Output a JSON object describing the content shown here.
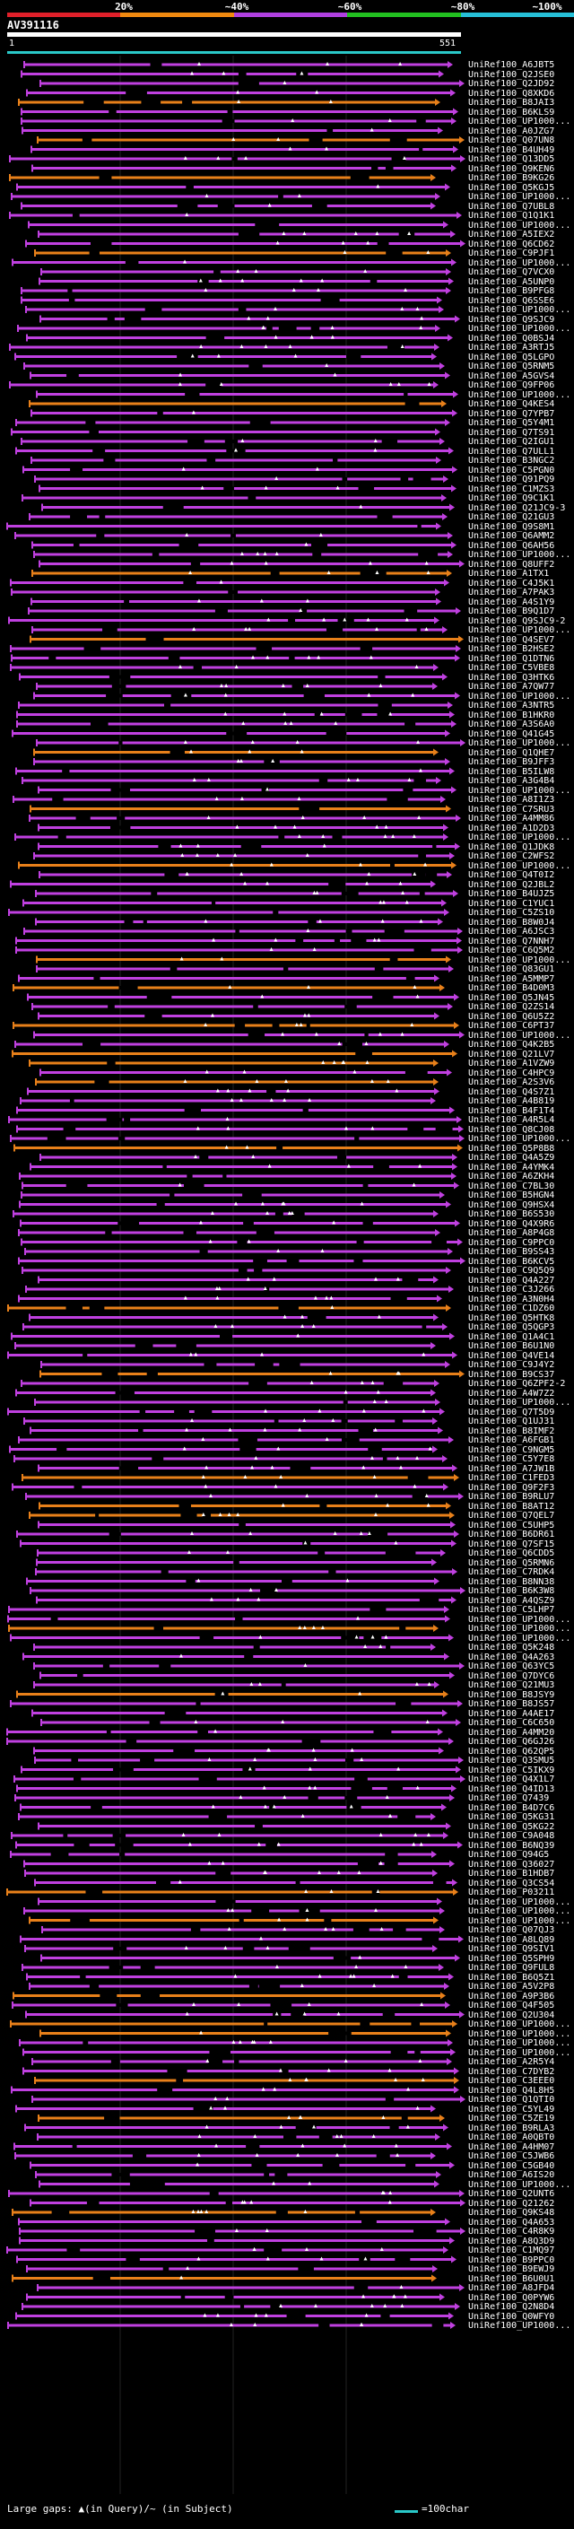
{
  "scale": {
    "labels": [
      "20%",
      "~40%",
      "~60%",
      "~80%",
      "~100%"
    ],
    "colors": [
      "#e0202a",
      "#f08a10",
      "#b040e0",
      "#22c020",
      "#26c0d8"
    ]
  },
  "query": {
    "name": "AV391116",
    "start": "1",
    "end": "551"
  },
  "colors": {
    "magenta": "#c040e0",
    "orange": "#e8801a",
    "cyan": "#2ac8c8",
    "white": "#ffffff",
    "background": "#000000"
  },
  "hits": [
    {
      "label": "UniRef100_A6JBT5",
      "color": "magenta"
    },
    {
      "label": "UniRef100_Q2JSE0",
      "color": "magenta"
    },
    {
      "label": "UniRef100_Q2JD92",
      "color": "magenta"
    },
    {
      "label": "UniRef100_Q8XKD6",
      "color": "magenta"
    },
    {
      "label": "UniRef100_B8JAI3",
      "color": "orange"
    },
    {
      "label": "UniRef100_B6KLS9",
      "color": "magenta"
    },
    {
      "label": "UniRef100_UP1000...",
      "color": "magenta"
    },
    {
      "label": "UniRef100_A0JZG7",
      "color": "magenta"
    },
    {
      "label": "UniRef100_Q07UN8",
      "color": "orange"
    },
    {
      "label": "UniRef100_B4UH49",
      "color": "magenta"
    },
    {
      "label": "UniRef100_Q13DD5",
      "color": "magenta"
    },
    {
      "label": "UniRef100_Q9KEN6",
      "color": "magenta"
    },
    {
      "label": "UniRef100_B9KG26",
      "color": "orange"
    },
    {
      "label": "UniRef100_Q5KGJ5",
      "color": "magenta"
    },
    {
      "label": "UniRef100_UP1000...",
      "color": "magenta"
    },
    {
      "label": "UniRef100_Q7UBL8",
      "color": "magenta"
    },
    {
      "label": "UniRef100_Q1Q1K1",
      "color": "magenta"
    },
    {
      "label": "UniRef100_UP1000...",
      "color": "magenta"
    },
    {
      "label": "UniRef100_A5IEX2",
      "color": "magenta"
    },
    {
      "label": "UniRef100_Q6CD62",
      "color": "magenta"
    },
    {
      "label": "UniRef100_C9PJF1",
      "color": "orange"
    },
    {
      "label": "UniRef100_UP1000...",
      "color": "magenta"
    },
    {
      "label": "UniRef100_Q7VCX0",
      "color": "magenta"
    },
    {
      "label": "UniRef100_A5UNP0",
      "color": "magenta"
    },
    {
      "label": "UniRef100_B9PFG8",
      "color": "magenta"
    },
    {
      "label": "UniRef100_Q6SSE6",
      "color": "magenta"
    },
    {
      "label": "UniRef100_UP1000...",
      "color": "magenta"
    },
    {
      "label": "UniRef100_Q9SJC9",
      "color": "magenta"
    },
    {
      "label": "UniRef100_UP1000...",
      "color": "magenta"
    },
    {
      "label": "UniRef100_Q0BSJ4",
      "color": "magenta"
    },
    {
      "label": "UniRef100_A3RTJ5",
      "color": "magenta"
    },
    {
      "label": "UniRef100_Q5LGPO",
      "color": "magenta"
    },
    {
      "label": "UniRef100_Q5RNM5",
      "color": "magenta"
    },
    {
      "label": "UniRef100_A5GVS4",
      "color": "magenta"
    },
    {
      "label": "UniRef100_Q9FP06",
      "color": "magenta"
    },
    {
      "label": "UniRef100_UP1000...",
      "color": "magenta"
    },
    {
      "label": "UniRef100_Q4KES4",
      "color": "orange"
    },
    {
      "label": "UniRef100_Q7YPB7",
      "color": "magenta"
    },
    {
      "label": "UniRef100_Q5Y4M1",
      "color": "magenta"
    },
    {
      "label": "UniRef100_Q7TS91",
      "color": "magenta"
    },
    {
      "label": "UniRef100_Q2IGU1",
      "color": "magenta"
    },
    {
      "label": "UniRef100_Q7ULL1",
      "color": "magenta"
    },
    {
      "label": "UniRef100_B3NGC2",
      "color": "magenta"
    },
    {
      "label": "UniRef100_C5PGN0",
      "color": "magenta"
    },
    {
      "label": "UniRef100_Q91PQ9",
      "color": "magenta"
    },
    {
      "label": "UniRef100_C1MZS3",
      "color": "magenta"
    },
    {
      "label": "UniRef100_Q9C1K1",
      "color": "magenta"
    },
    {
      "label": "UniRef100_Q21JC9-3",
      "color": "magenta"
    },
    {
      "label": "UniRef100_Q21GU3",
      "color": "magenta"
    },
    {
      "label": "UniRef100_Q9S8M1",
      "color": "magenta"
    },
    {
      "label": "UniRef100_Q6AMM2",
      "color": "magenta"
    },
    {
      "label": "UniRef100_Q6AH56",
      "color": "magenta"
    },
    {
      "label": "UniRef100_UP1000...",
      "color": "magenta"
    },
    {
      "label": "UniRef100_Q8UFF2",
      "color": "magenta"
    },
    {
      "label": "UniRef100_A1TX1",
      "color": "orange"
    },
    {
      "label": "UniRef100_C4J5K1",
      "color": "magenta"
    },
    {
      "label": "UniRef100_A7PAK3",
      "color": "magenta"
    },
    {
      "label": "UniRef100_A4S1Y9",
      "color": "magenta"
    },
    {
      "label": "UniRef100_B9Q1D7",
      "color": "magenta"
    },
    {
      "label": "UniRef100_Q9SJC9-2",
      "color": "magenta"
    },
    {
      "label": "UniRef100_UP1000...",
      "color": "magenta"
    },
    {
      "label": "UniRef100_Q4SEV7",
      "color": "orange"
    },
    {
      "label": "UniRef100_B2HSE2",
      "color": "magenta"
    },
    {
      "label": "UniRef100_Q1DTN6",
      "color": "magenta"
    },
    {
      "label": "UniRef100_C5VBE8",
      "color": "magenta"
    },
    {
      "label": "UniRef100_Q3HTK6",
      "color": "magenta"
    },
    {
      "label": "UniRef100_A7QW77",
      "color": "magenta"
    },
    {
      "label": "UniRef100_UP1000...",
      "color": "magenta"
    },
    {
      "label": "UniRef100_A3NTR5",
      "color": "magenta"
    },
    {
      "label": "UniRef100_B1HKR0",
      "color": "magenta"
    },
    {
      "label": "UniRef100_A3S6A0",
      "color": "magenta"
    },
    {
      "label": "UniRef100_Q41G45",
      "color": "magenta"
    },
    {
      "label": "UniRef100_UP1000...",
      "color": "magenta"
    },
    {
      "label": "UniRef100_Q1QHE7",
      "color": "orange"
    },
    {
      "label": "UniRef100_B9JFF3",
      "color": "magenta"
    },
    {
      "label": "UniRef100_B5ILW8",
      "color": "magenta"
    },
    {
      "label": "UniRef100_A3G4B4",
      "color": "magenta"
    },
    {
      "label": "UniRef100_UP1000...",
      "color": "magenta"
    },
    {
      "label": "UniRef100_A8I1Z3",
      "color": "magenta"
    },
    {
      "label": "UniRef100_C7SRU3",
      "color": "orange"
    },
    {
      "label": "UniRef100_A4MM86",
      "color": "magenta"
    },
    {
      "label": "UniRef100_A1D2D3",
      "color": "magenta"
    },
    {
      "label": "UniRef100_UP1000...",
      "color": "magenta"
    },
    {
      "label": "UniRef100_Q1JDK8",
      "color": "magenta"
    },
    {
      "label": "UniRef100_C2WFS2",
      "color": "magenta"
    },
    {
      "label": "UniRef100_UP1000...",
      "color": "orange"
    },
    {
      "label": "UniRef100_Q4T0I2",
      "color": "magenta"
    },
    {
      "label": "UniRef100_Q2JBL2",
      "color": "magenta"
    },
    {
      "label": "UniRef100_B4UJZ5",
      "color": "magenta"
    },
    {
      "label": "UniRef100_C1YUC1",
      "color": "magenta"
    },
    {
      "label": "UniRef100_C5ZS10",
      "color": "magenta"
    },
    {
      "label": "UniRef100_B8W0J4",
      "color": "magenta"
    },
    {
      "label": "UniRef100_A6JSC3",
      "color": "magenta"
    },
    {
      "label": "UniRef100_Q7NNH7",
      "color": "magenta"
    },
    {
      "label": "UniRef100_C6Q5M2",
      "color": "magenta"
    },
    {
      "label": "UniRef100_UP1000...",
      "color": "orange"
    },
    {
      "label": "UniRef100_Q83GU1",
      "color": "magenta"
    },
    {
      "label": "UniRef100_A5MMP7",
      "color": "magenta"
    },
    {
      "label": "UniRef100_B4D0M3",
      "color": "orange"
    },
    {
      "label": "UniRef100_Q5JN45",
      "color": "magenta"
    },
    {
      "label": "UniRef100_Q2ZS14",
      "color": "magenta"
    },
    {
      "label": "UniRef100_Q6U5Z2",
      "color": "magenta"
    },
    {
      "label": "UniRef100_C6PT37",
      "color": "orange"
    },
    {
      "label": "UniRef100_UP1000...",
      "color": "magenta"
    },
    {
      "label": "UniRef100_Q4K2B5",
      "color": "magenta"
    },
    {
      "label": "UniRef100_Q21LV7",
      "color": "orange"
    },
    {
      "label": "UniRef100_A1VZW9",
      "color": "orange"
    },
    {
      "label": "UniRef100_C4HPC9",
      "color": "magenta"
    },
    {
      "label": "UniRef100_A2S3V6",
      "color": "orange"
    },
    {
      "label": "UniRef100_Q4S7Z1",
      "color": "magenta"
    },
    {
      "label": "UniRef100_A4B819",
      "color": "magenta"
    },
    {
      "label": "UniRef100_B4F1T4",
      "color": "magenta"
    },
    {
      "label": "UniRef100_A4R5L4",
      "color": "magenta"
    },
    {
      "label": "UniRef100_Q8CJ08",
      "color": "magenta"
    },
    {
      "label": "UniRef100_UP1000...",
      "color": "magenta"
    },
    {
      "label": "UniRef100_Q5P8B8",
      "color": "orange"
    },
    {
      "label": "UniRef100_Q4A5Z9",
      "color": "magenta"
    },
    {
      "label": "UniRef100_A4YMK4",
      "color": "magenta"
    },
    {
      "label": "UniRef100_A6ZKH4",
      "color": "magenta"
    },
    {
      "label": "UniRef100_C7BL30",
      "color": "magenta"
    },
    {
      "label": "UniRef100_B5HGN4",
      "color": "magenta"
    },
    {
      "label": "UniRef100_Q9HSX4",
      "color": "magenta"
    },
    {
      "label": "UniRef100_B6S530",
      "color": "magenta"
    },
    {
      "label": "UniRef100_Q4X9R6",
      "color": "magenta"
    },
    {
      "label": "UniRef100_A8P4G8",
      "color": "magenta"
    },
    {
      "label": "UniRef100_C9PPC0",
      "color": "magenta"
    },
    {
      "label": "UniRef100_B9SS43",
      "color": "magenta"
    },
    {
      "label": "UniRef100_B6KCV5",
      "color": "magenta"
    },
    {
      "label": "UniRef100_C9Q5Q9",
      "color": "magenta"
    },
    {
      "label": "UniRef100_Q4A227",
      "color": "magenta"
    },
    {
      "label": "UniRef100_C3J266",
      "color": "magenta"
    },
    {
      "label": "UniRef100_A3N0H4",
      "color": "magenta"
    },
    {
      "label": "UniRef100_C1DZ60",
      "color": "orange"
    },
    {
      "label": "UniRef100_Q5HTK8",
      "color": "magenta"
    },
    {
      "label": "UniRef100_Q5QGP3",
      "color": "magenta"
    },
    {
      "label": "UniRef100_Q1A4C1",
      "color": "magenta"
    },
    {
      "label": "UniRef100_B6U1N0",
      "color": "magenta"
    },
    {
      "label": "UniRef100_Q4VE14",
      "color": "magenta"
    },
    {
      "label": "UniRef100_C9J4Y2",
      "color": "magenta"
    },
    {
      "label": "UniRef100_B9CS37",
      "color": "orange"
    },
    {
      "label": "UniRef100_Q6ZPF2-2",
      "color": "magenta"
    },
    {
      "label": "UniRef100_A4W7Z2",
      "color": "magenta"
    },
    {
      "label": "UniRef100_UP1000...",
      "color": "magenta"
    },
    {
      "label": "UniRef100_Q7T5D9",
      "color": "magenta"
    },
    {
      "label": "UniRef100_Q1UJ31",
      "color": "magenta"
    },
    {
      "label": "UniRef100_B8IMF2",
      "color": "magenta"
    },
    {
      "label": "UniRef100_A6FGB1",
      "color": "magenta"
    },
    {
      "label": "UniRef100_C9NGM5",
      "color": "magenta"
    },
    {
      "label": "UniRef100_C5Y7E8",
      "color": "magenta"
    },
    {
      "label": "UniRef100_A7JW1B",
      "color": "magenta"
    },
    {
      "label": "UniRef100_C1FED3",
      "color": "orange"
    },
    {
      "label": "UniRef100_Q9F2F3",
      "color": "magenta"
    },
    {
      "label": "UniRef100_B9RLU7",
      "color": "magenta"
    },
    {
      "label": "UniRef100_B8AT12",
      "color": "orange"
    },
    {
      "label": "UniRef100_Q7QEL7",
      "color": "orange"
    },
    {
      "label": "UniRef100_C5UHP5",
      "color": "magenta"
    },
    {
      "label": "UniRef100_B6DR61",
      "color": "magenta"
    },
    {
      "label": "UniRef100_Q7SF15",
      "color": "magenta"
    },
    {
      "label": "UniRef100_Q6CDD5",
      "color": "magenta"
    },
    {
      "label": "UniRef100_Q5RMN6",
      "color": "magenta"
    },
    {
      "label": "UniRef100_C7RDK4",
      "color": "magenta"
    },
    {
      "label": "UniRef100_B8NN38",
      "color": "magenta"
    },
    {
      "label": "UniRef100_B6K3W8",
      "color": "magenta"
    },
    {
      "label": "UniRef100_A4QSZ9",
      "color": "magenta"
    },
    {
      "label": "UniRef100_C5LHP7",
      "color": "magenta"
    },
    {
      "label": "UniRef100_UP1000...",
      "color": "magenta"
    },
    {
      "label": "UniRef100_UP1000...",
      "color": "orange"
    },
    {
      "label": "UniRef100_UP1000...",
      "color": "magenta"
    },
    {
      "label": "UniRef100_Q5K248",
      "color": "magenta"
    },
    {
      "label": "UniRef100_Q4A263",
      "color": "magenta"
    },
    {
      "label": "UniRef100_Q63YC5",
      "color": "magenta"
    },
    {
      "label": "UniRef100_Q7DYC6",
      "color": "magenta"
    },
    {
      "label": "UniRef100_Q21MU3",
      "color": "magenta"
    },
    {
      "label": "UniRef100_B8JSY9",
      "color": "orange"
    },
    {
      "label": "UniRef100_B8JS57",
      "color": "magenta"
    },
    {
      "label": "UniRef100_A4AE17",
      "color": "magenta"
    },
    {
      "label": "UniRef100_C6C650",
      "color": "magenta"
    },
    {
      "label": "UniRef100_A4MM20",
      "color": "magenta"
    },
    {
      "label": "UniRef100_Q6GJ26",
      "color": "magenta"
    },
    {
      "label": "UniRef100_Q62QP5",
      "color": "magenta"
    },
    {
      "label": "UniRef100_Q3SMU5",
      "color": "magenta"
    },
    {
      "label": "UniRef100_C5IKX9",
      "color": "magenta"
    },
    {
      "label": "UniRef100_Q4X1L7",
      "color": "magenta"
    },
    {
      "label": "UniRef100_Q4ID13",
      "color": "magenta"
    },
    {
      "label": "UniRef100_Q7439",
      "color": "magenta"
    },
    {
      "label": "UniRef100_B4D7C6",
      "color": "magenta"
    },
    {
      "label": "UniRef100_Q5KG31",
      "color": "magenta"
    },
    {
      "label": "UniRef100_Q5KG22",
      "color": "magenta"
    },
    {
      "label": "UniRef100_C9A048",
      "color": "magenta"
    },
    {
      "label": "UniRef100_B6NQ39",
      "color": "magenta"
    },
    {
      "label": "UniRef100_Q94G5",
      "color": "magenta"
    },
    {
      "label": "UniRef100_Q36027",
      "color": "magenta"
    },
    {
      "label": "UniRef100_B1HDB7",
      "color": "magenta"
    },
    {
      "label": "UniRef100_Q3CS54",
      "color": "magenta"
    },
    {
      "label": "UniRef100_P03211",
      "color": "orange"
    },
    {
      "label": "UniRef100_UP1000...",
      "color": "magenta"
    },
    {
      "label": "UniRef100_UP1000...",
      "color": "magenta"
    },
    {
      "label": "UniRef100_UP1000...",
      "color": "orange"
    },
    {
      "label": "UniRef100_Q07QJ3",
      "color": "magenta"
    },
    {
      "label": "UniRef100_A8LQ89",
      "color": "magenta"
    },
    {
      "label": "UniRef100_Q9SIV1",
      "color": "magenta"
    },
    {
      "label": "UniRef100_Q5SPH9",
      "color": "magenta"
    },
    {
      "label": "UniRef100_Q9FUL8",
      "color": "magenta"
    },
    {
      "label": "UniRef100_B6Q5Z1",
      "color": "magenta"
    },
    {
      "label": "UniRef100_A5V2P8",
      "color": "magenta"
    },
    {
      "label": "UniRef100_A9P3B6",
      "color": "orange"
    },
    {
      "label": "UniRef100_Q4F505",
      "color": "magenta"
    },
    {
      "label": "UniRef100_Q2U304",
      "color": "magenta"
    },
    {
      "label": "UniRef100_UP1000...",
      "color": "orange"
    },
    {
      "label": "UniRef100_UP1000...",
      "color": "orange"
    },
    {
      "label": "UniRef100_UP1000...",
      "color": "magenta"
    },
    {
      "label": "UniRef100_UP1000...",
      "color": "magenta"
    },
    {
      "label": "UniRef100_A2R5Y4",
      "color": "magenta"
    },
    {
      "label": "UniRef100_C7DYB2",
      "color": "magenta"
    },
    {
      "label": "UniRef100_C3EEE0",
      "color": "orange"
    },
    {
      "label": "UniRef100_Q4L8H5",
      "color": "magenta"
    },
    {
      "label": "UniRef100_Q1QTI0",
      "color": "magenta"
    },
    {
      "label": "UniRef100_C5YL49",
      "color": "magenta"
    },
    {
      "label": "UniRef100_C5ZE19",
      "color": "orange"
    },
    {
      "label": "UniRef100_B9RLA3",
      "color": "magenta"
    },
    {
      "label": "UniRef100_A0QBT0",
      "color": "magenta"
    },
    {
      "label": "UniRef100_A4HM07",
      "color": "magenta"
    },
    {
      "label": "UniRef100_C5JWB6",
      "color": "magenta"
    },
    {
      "label": "UniRef100_C5GB40",
      "color": "magenta"
    },
    {
      "label": "UniRef100_A6IS20",
      "color": "magenta"
    },
    {
      "label": "UniRef100_UP1000...",
      "color": "magenta"
    },
    {
      "label": "UniRef100_Q2UNT6",
      "color": "magenta"
    },
    {
      "label": "UniRef100_Q21262",
      "color": "magenta"
    },
    {
      "label": "UniRef100_Q9KS48",
      "color": "orange"
    },
    {
      "label": "UniRef100_Q4A653",
      "color": "magenta"
    },
    {
      "label": "UniRef100_C4R8K9",
      "color": "magenta"
    },
    {
      "label": "UniRef100_A8Q3D9",
      "color": "magenta"
    },
    {
      "label": "UniRef100_C1MQ97",
      "color": "magenta"
    },
    {
      "label": "UniRef100_B9PPC0",
      "color": "magenta"
    },
    {
      "label": "UniRef100_B9EWJ9",
      "color": "magenta"
    },
    {
      "label": "UniRef100_B6U0U1",
      "color": "orange"
    },
    {
      "label": "UniRef100_A8JFD4",
      "color": "magenta"
    },
    {
      "label": "UniRef100_Q0PYW6",
      "color": "magenta"
    },
    {
      "label": "UniRef100_Q2N8D4",
      "color": "magenta"
    },
    {
      "label": "UniRef100_Q0WFY0",
      "color": "magenta"
    },
    {
      "label": "UniRef100_UP1000...",
      "color": "magenta"
    }
  ],
  "legend": {
    "gaps_text": "Large gaps: ▲(in Query)/~ (in Subject)",
    "scale_text": "=100char"
  }
}
